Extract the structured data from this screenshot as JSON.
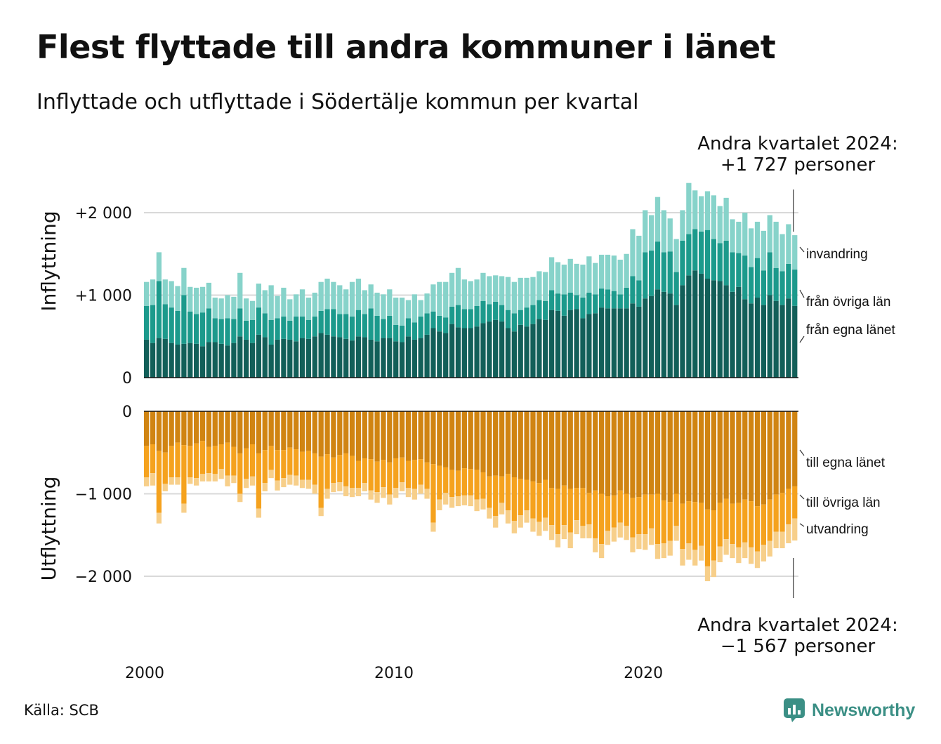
{
  "title": "Flest flyttade till andra kommuner i länet",
  "subtitle": "Inflyttade och utflyttade i Södertälje kommun per kvartal",
  "source": "Källa: SCB",
  "brand": "Newsworthy",
  "colors": {
    "in_egna": "#125f59",
    "in_ovriga": "#1c9a8c",
    "in_invandring": "#87d3ca",
    "out_egna": "#d08412",
    "out_ovriga": "#f5a21e",
    "out_utvandring": "#f7cf8a",
    "brand": "#3b8f85",
    "grid": "#d9d9d9"
  },
  "chart_data": {
    "type": "bar",
    "x_ticks": [
      "2000",
      "2010",
      "2020"
    ],
    "inflyttning": {
      "ylabel": "Inflyttning",
      "yticks": [
        "0",
        "+1 000",
        "+2 000"
      ],
      "ylim": [
        0,
        2300
      ],
      "annotation": [
        "Andra kvartalet 2024:",
        "+1 727 personer"
      ],
      "series": [
        {
          "name": "från egna länet",
          "values": [
            460,
            420,
            480,
            470,
            420,
            400,
            410,
            420,
            410,
            380,
            430,
            430,
            410,
            390,
            420,
            500,
            460,
            420,
            520,
            490,
            400,
            460,
            470,
            460,
            440,
            480,
            470,
            500,
            540,
            520,
            500,
            490,
            470,
            450,
            500,
            490,
            460,
            440,
            480,
            480,
            440,
            430,
            500,
            460,
            480,
            520,
            600,
            560,
            540,
            650,
            610,
            600,
            600,
            620,
            660,
            680,
            700,
            680,
            600,
            560,
            640,
            620,
            650,
            710,
            700,
            820,
            810,
            750,
            820,
            830,
            720,
            770,
            780,
            850,
            840,
            840,
            840,
            840,
            900,
            860,
            960,
            990,
            1070,
            1040,
            1020,
            880,
            1120,
            1240,
            1300,
            1260,
            1200,
            1180,
            1170,
            1120,
            1040,
            1100,
            950,
            900,
            970,
            880,
            1000,
            930,
            880,
            960,
            870
          ]
        },
        {
          "name": "från övriga län",
          "values": [
            410,
            460,
            690,
            420,
            430,
            410,
            590,
            380,
            360,
            410,
            410,
            290,
            300,
            330,
            290,
            340,
            230,
            280,
            330,
            290,
            300,
            260,
            270,
            230,
            300,
            260,
            230,
            240,
            270,
            310,
            330,
            280,
            300,
            290,
            320,
            280,
            380,
            310,
            230,
            270,
            200,
            200,
            220,
            210,
            260,
            260,
            200,
            190,
            190,
            210,
            270,
            230,
            230,
            250,
            270,
            210,
            220,
            200,
            220,
            220,
            180,
            230,
            230,
            230,
            230,
            240,
            210,
            260,
            210,
            170,
            250,
            260,
            230,
            230,
            230,
            210,
            170,
            250,
            330,
            320,
            560,
            550,
            580,
            480,
            510,
            400,
            540,
            500,
            500,
            510,
            590,
            500,
            460,
            540,
            480,
            410,
            530,
            440,
            480,
            420,
            520,
            400,
            410,
            420,
            440
          ]
        },
        {
          "name": "invandring",
          "values": [
            290,
            310,
            350,
            300,
            320,
            300,
            330,
            300,
            320,
            310,
            310,
            250,
            250,
            280,
            270,
            430,
            270,
            230,
            290,
            280,
            420,
            270,
            350,
            260,
            270,
            330,
            270,
            290,
            350,
            370,
            330,
            350,
            300,
            420,
            380,
            290,
            290,
            280,
            300,
            320,
            330,
            340,
            220,
            340,
            200,
            240,
            330,
            410,
            430,
            410,
            450,
            360,
            340,
            320,
            340,
            340,
            320,
            350,
            400,
            380,
            390,
            360,
            340,
            350,
            350,
            400,
            380,
            360,
            410,
            380,
            400,
            440,
            380,
            410,
            420,
            430,
            420,
            410,
            570,
            540,
            510,
            430,
            540,
            510,
            400,
            400,
            370,
            620,
            470,
            430,
            470,
            530,
            450,
            520,
            400,
            380,
            520,
            470,
            440,
            480,
            450,
            560,
            450,
            480,
            417
          ]
        }
      ]
    },
    "utflyttning": {
      "ylabel": "Utflyttning",
      "yticks": [
        "0",
        "−1 000",
        "−2 000"
      ],
      "ylim": [
        -2300,
        0
      ],
      "annotation": [
        "Andra kvartalet 2024:",
        "−1 567 personer"
      ],
      "series": [
        {
          "name": "till egna länet",
          "values": [
            -420,
            -400,
            -480,
            -500,
            -420,
            -380,
            -410,
            -420,
            -390,
            -360,
            -430,
            -420,
            -400,
            -380,
            -430,
            -510,
            -450,
            -400,
            -510,
            -470,
            -420,
            -470,
            -470,
            -440,
            -460,
            -490,
            -480,
            -510,
            -550,
            -520,
            -560,
            -530,
            -510,
            -540,
            -600,
            -570,
            -580,
            -610,
            -590,
            -620,
            -570,
            -560,
            -600,
            -590,
            -580,
            -620,
            -640,
            -660,
            -680,
            -710,
            -720,
            -690,
            -700,
            -710,
            -740,
            -790,
            -780,
            -790,
            -760,
            -800,
            -820,
            -830,
            -850,
            -870,
            -830,
            -930,
            -940,
            -900,
            -940,
            -930,
            -930,
            -990,
            -960,
            -1000,
            -1030,
            -1020,
            -960,
            -1000,
            -1050,
            -1040,
            -1010,
            -1010,
            -1000,
            -1080,
            -1100,
            -1000,
            -1120,
            -1090,
            -1100,
            -1110,
            -1190,
            -1200,
            -1110,
            -1060,
            -1120,
            -1110,
            -1070,
            -1090,
            -1150,
            -1130,
            -1070,
            -1010,
            -990,
            -940,
            -910
          ]
        },
        {
          "name": "till övriga län",
          "values": [
            -380,
            -350,
            -750,
            -380,
            -380,
            -420,
            -710,
            -380,
            -420,
            -400,
            -320,
            -340,
            -300,
            -400,
            -350,
            -490,
            -370,
            -390,
            -670,
            -400,
            -290,
            -370,
            -340,
            -330,
            -320,
            -340,
            -350,
            -380,
            -620,
            -420,
            -310,
            -330,
            -400,
            -390,
            -330,
            -300,
            -380,
            -370,
            -330,
            -390,
            -360,
            -300,
            -330,
            -350,
            -310,
            -320,
            -710,
            -410,
            -310,
            -330,
            -310,
            -330,
            -320,
            -360,
            -320,
            -380,
            -490,
            -320,
            -440,
            -530,
            -440,
            -370,
            -450,
            -470,
            -460,
            -450,
            -550,
            -480,
            -530,
            -390,
            -460,
            -380,
            -580,
            -610,
            -420,
            -390,
            -390,
            -390,
            -480,
            -450,
            -480,
            -410,
            -610,
            -520,
            -470,
            -390,
            -550,
            -510,
            -580,
            -520,
            -690,
            -610,
            -530,
            -490,
            -490,
            -540,
            -520,
            -560,
            -550,
            -490,
            -500,
            -450,
            -470,
            -430,
            -390
          ]
        },
        {
          "name": "utvandring",
          "values": [
            -110,
            -150,
            -130,
            -90,
            -90,
            -90,
            -110,
            -80,
            -90,
            -90,
            -100,
            -90,
            -120,
            -130,
            -90,
            -100,
            -110,
            -110,
            -110,
            -100,
            -100,
            -120,
            -110,
            -120,
            -120,
            -100,
            -110,
            -110,
            -100,
            -120,
            -110,
            -110,
            -120,
            -110,
            -100,
            -100,
            -110,
            -130,
            -130,
            -120,
            -120,
            -110,
            -110,
            -130,
            -110,
            -120,
            -110,
            -130,
            -140,
            -130,
            -120,
            -120,
            -130,
            -140,
            -130,
            -130,
            -140,
            -140,
            -160,
            -150,
            -150,
            -150,
            -160,
            -170,
            -160,
            -180,
            -160,
            -170,
            -190,
            -170,
            -150,
            -170,
            -170,
            -170,
            -170,
            -170,
            -180,
            -170,
            -180,
            -180,
            -190,
            -200,
            -180,
            -180,
            -180,
            -180,
            -200,
            -200,
            -190,
            -180,
            -180,
            -200,
            -190,
            -190,
            -170,
            -190,
            -190,
            -200,
            -200,
            -200,
            -190,
            -200,
            -200,
            -230,
            -267
          ]
        }
      ]
    }
  }
}
